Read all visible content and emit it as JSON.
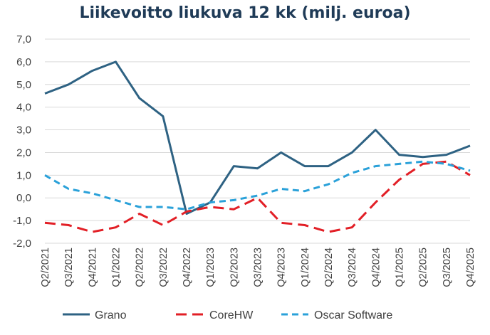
{
  "chart_data": {
    "type": "line",
    "title": "Liikevoitto liukuva 12 kk (milj. euroa)",
    "xlabel": "",
    "ylabel": "",
    "ylim": [
      -2.0,
      7.0
    ],
    "yticks": [
      "-2,0",
      "-1,0",
      "0,0",
      "1,0",
      "2,0",
      "3,0",
      "4,0",
      "5,0",
      "6,0",
      "7,0"
    ],
    "grid": true,
    "legend_position": "bottom",
    "categories": [
      "Q2/2021",
      "Q3/2021",
      "Q4/2021",
      "Q1/2022",
      "Q2/2022",
      "Q3/2022",
      "Q4/2022",
      "Q1/2023",
      "Q2/2023",
      "Q3/2023",
      "Q4/2023",
      "Q1/2024",
      "Q2/2024",
      "Q3/2024",
      "Q4/2024",
      "Q1/2025",
      "Q2/2025",
      "Q3/2025",
      "Q4/2025"
    ],
    "series": [
      {
        "name": "Grano",
        "color": "#2e6283",
        "dash": "solid",
        "values": [
          4.6,
          5.0,
          5.6,
          6.0,
          4.4,
          3.6,
          -0.7,
          -0.2,
          1.4,
          1.3,
          2.0,
          1.4,
          1.4,
          2.0,
          3.0,
          1.9,
          1.8,
          1.9,
          2.3
        ]
      },
      {
        "name": "CoreHW",
        "color": "#e21f26",
        "dash": "long",
        "values": [
          -1.1,
          -1.2,
          -1.5,
          -1.3,
          -0.7,
          -1.2,
          -0.6,
          -0.4,
          -0.5,
          0.0,
          -1.1,
          -1.2,
          -1.5,
          -1.3,
          -0.2,
          0.8,
          1.5,
          1.6,
          1.0
        ]
      },
      {
        "name": "Oscar Software",
        "color": "#2aa1d9",
        "dash": "short",
        "values": [
          1.0,
          0.4,
          0.2,
          -0.1,
          -0.4,
          -0.4,
          -0.5,
          -0.2,
          -0.1,
          0.1,
          0.4,
          0.3,
          0.6,
          1.1,
          1.4,
          1.5,
          1.6,
          1.5,
          1.2
        ]
      }
    ]
  }
}
